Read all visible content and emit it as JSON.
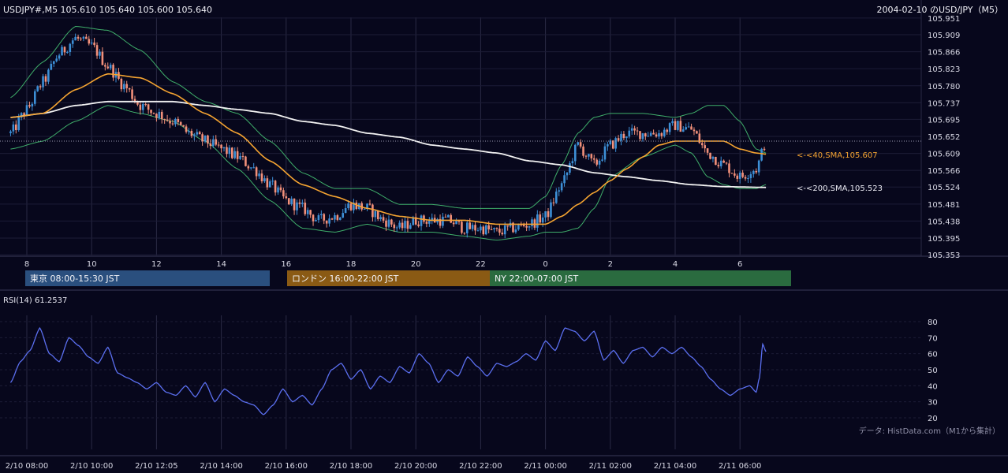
{
  "header": {
    "symbol_line": "USDJPY#,M5 105.610 105.640 105.600 105.640",
    "title_right": "2004-02-10 のUSD/JPY（M5）"
  },
  "sessions": [
    {
      "label": "東京 08:00-15:30 JST",
      "color": "#2a4f7e",
      "x_start": "8:00",
      "x_end": "15:30"
    },
    {
      "label": "ロンドン 16:00-22:00 JST",
      "color": "#8a5a14",
      "x_start": "16:00",
      "x_end": "22:00"
    },
    {
      "label": "NY 22:00-07:00 JST",
      "color": "#2a6b3f",
      "x_start": "22:00",
      "x_end": "07:00"
    }
  ],
  "sma_labels": {
    "sma40": "<-<40,SMA,105.607",
    "sma200": "<-<200,SMA,105.523"
  },
  "rsi_label": "RSI(14) 61.2537",
  "credit": "データ: HistData.com（M1から集計）",
  "colors": {
    "background": "#07071c",
    "bull": "#3d8fd6",
    "bear": "#f2907a",
    "bollinger": "#3fae6a",
    "sma40": "#f5a431",
    "sma200": "#f2f2f2",
    "rsi": "#5b6ff0",
    "grid": "#2a2a44"
  },
  "chart_data": [
    {
      "type": "candlestick",
      "title": "USDJPY#,M5",
      "x_tick_labels": [
        "8",
        "10",
        "12",
        "14",
        "16",
        "18",
        "20",
        "22",
        "0",
        "2",
        "4",
        "6"
      ],
      "y_tick_labels": [
        "105.951",
        "105.909",
        "105.866",
        "105.823",
        "105.780",
        "105.737",
        "105.695",
        "105.652",
        "105.609",
        "105.566",
        "105.524",
        "105.481",
        "105.438",
        "105.395",
        "105.353"
      ],
      "ylim": [
        105.353,
        105.951
      ],
      "last_price": 105.64,
      "indicators": [
        "SMA 40",
        "SMA 200",
        "Bollinger Bands"
      ],
      "close_path_hours": [
        [
          7.5,
          105.66
        ],
        [
          8.0,
          105.72
        ],
        [
          8.5,
          105.79
        ],
        [
          9.0,
          105.86
        ],
        [
          9.5,
          105.9
        ],
        [
          10.0,
          105.88
        ],
        [
          10.5,
          105.83
        ],
        [
          11.0,
          105.78
        ],
        [
          11.5,
          105.73
        ],
        [
          12.0,
          105.71
        ],
        [
          12.5,
          105.69
        ],
        [
          13.0,
          105.66
        ],
        [
          13.5,
          105.64
        ],
        [
          14.0,
          105.62
        ],
        [
          14.5,
          105.6
        ],
        [
          15.0,
          105.57
        ],
        [
          15.5,
          105.53
        ],
        [
          16.0,
          105.49
        ],
        [
          16.5,
          105.47
        ],
        [
          17.0,
          105.44
        ],
        [
          17.5,
          105.45
        ],
        [
          18.0,
          105.48
        ],
        [
          18.5,
          105.47
        ],
        [
          19.0,
          105.44
        ],
        [
          19.5,
          105.42
        ],
        [
          20.0,
          105.44
        ],
        [
          20.5,
          105.44
        ],
        [
          21.0,
          105.44
        ],
        [
          21.5,
          105.42
        ],
        [
          22.0,
          105.42
        ],
        [
          22.5,
          105.41
        ],
        [
          23.0,
          105.42
        ],
        [
          23.5,
          105.43
        ],
        [
          24.0,
          105.45
        ],
        [
          24.5,
          105.53
        ],
        [
          25.0,
          105.63
        ],
        [
          25.5,
          105.58
        ],
        [
          26.0,
          105.63
        ],
        [
          26.5,
          105.66
        ],
        [
          27.0,
          105.66
        ],
        [
          27.5,
          105.66
        ],
        [
          28.0,
          105.68
        ],
        [
          28.5,
          105.67
        ],
        [
          29.0,
          105.61
        ],
        [
          29.5,
          105.58
        ],
        [
          30.0,
          105.55
        ],
        [
          30.5,
          105.57
        ],
        [
          30.8,
          105.64
        ]
      ],
      "sma40_hours": [
        [
          7.5,
          105.7
        ],
        [
          8.5,
          105.71
        ],
        [
          9.5,
          105.77
        ],
        [
          10.5,
          105.81
        ],
        [
          11.5,
          105.8
        ],
        [
          12.5,
          105.76
        ],
        [
          13.5,
          105.71
        ],
        [
          14.5,
          105.66
        ],
        [
          15.5,
          105.59
        ],
        [
          16.5,
          105.53
        ],
        [
          17.5,
          105.5
        ],
        [
          18.5,
          105.47
        ],
        [
          19.5,
          105.45
        ],
        [
          20.5,
          105.44
        ],
        [
          21.5,
          105.44
        ],
        [
          22.5,
          105.43
        ],
        [
          23.5,
          105.43
        ],
        [
          24.0,
          105.43
        ],
        [
          24.5,
          105.45
        ],
        [
          25.0,
          105.48
        ],
        [
          25.5,
          105.51
        ],
        [
          26.0,
          105.54
        ],
        [
          26.5,
          105.57
        ],
        [
          27.0,
          105.6
        ],
        [
          27.5,
          105.63
        ],
        [
          28.0,
          105.64
        ],
        [
          28.5,
          105.64
        ],
        [
          29.0,
          105.64
        ],
        [
          29.5,
          105.64
        ],
        [
          30.0,
          105.62
        ],
        [
          30.5,
          105.61
        ],
        [
          30.8,
          105.607
        ]
      ],
      "sma200_hours": [
        [
          7.5,
          105.7
        ],
        [
          8.5,
          105.71
        ],
        [
          9.5,
          105.73
        ],
        [
          10.5,
          105.74
        ],
        [
          11.5,
          105.74
        ],
        [
          12.5,
          105.74
        ],
        [
          13.5,
          105.73
        ],
        [
          14.5,
          105.72
        ],
        [
          15.5,
          105.71
        ],
        [
          16.5,
          105.69
        ],
        [
          17.5,
          105.68
        ],
        [
          18.5,
          105.66
        ],
        [
          19.5,
          105.65
        ],
        [
          20.5,
          105.63
        ],
        [
          21.5,
          105.62
        ],
        [
          22.5,
          105.61
        ],
        [
          23.5,
          105.59
        ],
        [
          24.5,
          105.58
        ],
        [
          25.5,
          105.56
        ],
        [
          26.5,
          105.55
        ],
        [
          27.5,
          105.54
        ],
        [
          28.5,
          105.53
        ],
        [
          29.5,
          105.525
        ],
        [
          30.8,
          105.523
        ]
      ],
      "bb_upper_hours": [
        [
          7.5,
          105.75
        ],
        [
          8.5,
          105.84
        ],
        [
          9.5,
          105.93
        ],
        [
          10.5,
          105.92
        ],
        [
          11.5,
          105.87
        ],
        [
          12.5,
          105.79
        ],
        [
          13.5,
          105.74
        ],
        [
          14.5,
          105.71
        ],
        [
          15.5,
          105.64
        ],
        [
          16.5,
          105.56
        ],
        [
          17.5,
          105.52
        ],
        [
          18.5,
          105.52
        ],
        [
          19.5,
          105.48
        ],
        [
          20.5,
          105.48
        ],
        [
          21.5,
          105.47
        ],
        [
          22.5,
          105.47
        ],
        [
          23.5,
          105.47
        ],
        [
          24.0,
          105.5
        ],
        [
          24.5,
          105.58
        ],
        [
          25.0,
          105.66
        ],
        [
          25.5,
          105.7
        ],
        [
          26.0,
          105.71
        ],
        [
          27.0,
          105.71
        ],
        [
          28.0,
          105.7
        ],
        [
          28.5,
          105.71
        ],
        [
          29.0,
          105.73
        ],
        [
          29.5,
          105.73
        ],
        [
          30.0,
          105.69
        ],
        [
          30.5,
          105.62
        ],
        [
          30.8,
          105.61
        ]
      ],
      "bb_lower_hours": [
        [
          7.5,
          105.62
        ],
        [
          8.5,
          105.64
        ],
        [
          9.5,
          105.69
        ],
        [
          10.5,
          105.73
        ],
        [
          11.5,
          105.71
        ],
        [
          12.5,
          105.69
        ],
        [
          13.5,
          105.64
        ],
        [
          14.5,
          105.57
        ],
        [
          15.5,
          105.49
        ],
        [
          16.5,
          105.42
        ],
        [
          17.5,
          105.41
        ],
        [
          18.5,
          105.43
        ],
        [
          19.5,
          105.41
        ],
        [
          20.5,
          105.41
        ],
        [
          21.5,
          105.4
        ],
        [
          22.5,
          105.39
        ],
        [
          23.5,
          105.4
        ],
        [
          24.0,
          105.41
        ],
        [
          24.5,
          105.41
        ],
        [
          25.0,
          105.42
        ],
        [
          25.5,
          105.47
        ],
        [
          26.0,
          105.55
        ],
        [
          27.0,
          105.6
        ],
        [
          28.0,
          105.63
        ],
        [
          28.5,
          105.61
        ],
        [
          29.0,
          105.55
        ],
        [
          29.5,
          105.53
        ],
        [
          30.0,
          105.52
        ],
        [
          30.5,
          105.52
        ],
        [
          30.8,
          105.53
        ]
      ]
    },
    {
      "type": "line",
      "title": "RSI(14)",
      "last_value": 61.2537,
      "y_tick_labels": [
        "80",
        "70",
        "60",
        "50",
        "40",
        "30",
        "20"
      ],
      "ylim": [
        16,
        84
      ],
      "x_tick_labels": [
        "2/10 08:00",
        "2/10 10:00",
        "2/10 12:05",
        "2/10 14:00",
        "2/10 16:00",
        "2/10 18:00",
        "2/10 20:00",
        "2/10 22:00",
        "2/11 00:00",
        "2/11 02:00",
        "2/11 04:00",
        "2/11 06:00"
      ],
      "rsi_path_hours": [
        [
          7.5,
          42
        ],
        [
          7.8,
          55
        ],
        [
          8.1,
          62
        ],
        [
          8.4,
          76
        ],
        [
          8.7,
          60
        ],
        [
          9.0,
          55
        ],
        [
          9.3,
          70
        ],
        [
          9.6,
          65
        ],
        [
          9.9,
          58
        ],
        [
          10.2,
          54
        ],
        [
          10.5,
          64
        ],
        [
          10.8,
          48
        ],
        [
          11.1,
          45
        ],
        [
          11.4,
          42
        ],
        [
          11.7,
          38
        ],
        [
          12.0,
          42
        ],
        [
          12.3,
          36
        ],
        [
          12.6,
          34
        ],
        [
          12.9,
          40
        ],
        [
          13.2,
          33
        ],
        [
          13.5,
          42
        ],
        [
          13.8,
          30
        ],
        [
          14.1,
          38
        ],
        [
          14.4,
          34
        ],
        [
          14.7,
          30
        ],
        [
          15.0,
          28
        ],
        [
          15.3,
          22
        ],
        [
          15.6,
          28
        ],
        [
          15.9,
          38
        ],
        [
          16.2,
          30
        ],
        [
          16.5,
          34
        ],
        [
          16.8,
          28
        ],
        [
          17.1,
          38
        ],
        [
          17.4,
          50
        ],
        [
          17.7,
          54
        ],
        [
          18.0,
          44
        ],
        [
          18.3,
          50
        ],
        [
          18.6,
          38
        ],
        [
          18.9,
          46
        ],
        [
          19.2,
          42
        ],
        [
          19.5,
          52
        ],
        [
          19.8,
          48
        ],
        [
          20.1,
          60
        ],
        [
          20.4,
          54
        ],
        [
          20.7,
          42
        ],
        [
          21.0,
          50
        ],
        [
          21.3,
          46
        ],
        [
          21.6,
          58
        ],
        [
          21.9,
          52
        ],
        [
          22.2,
          46
        ],
        [
          22.5,
          54
        ],
        [
          22.8,
          52
        ],
        [
          23.1,
          55
        ],
        [
          23.4,
          60
        ],
        [
          23.7,
          56
        ],
        [
          24.0,
          68
        ],
        [
          24.3,
          62
        ],
        [
          24.6,
          76
        ],
        [
          24.9,
          74
        ],
        [
          25.2,
          68
        ],
        [
          25.5,
          74
        ],
        [
          25.8,
          56
        ],
        [
          26.1,
          62
        ],
        [
          26.4,
          54
        ],
        [
          26.7,
          62
        ],
        [
          27.0,
          64
        ],
        [
          27.3,
          58
        ],
        [
          27.6,
          64
        ],
        [
          27.9,
          60
        ],
        [
          28.2,
          64
        ],
        [
          28.5,
          58
        ],
        [
          28.8,
          52
        ],
        [
          29.1,
          44
        ],
        [
          29.4,
          38
        ],
        [
          29.7,
          34
        ],
        [
          30.0,
          38
        ],
        [
          30.3,
          40
        ],
        [
          30.5,
          36
        ],
        [
          30.6,
          45
        ],
        [
          30.7,
          66
        ],
        [
          30.8,
          61.25
        ]
      ]
    }
  ]
}
